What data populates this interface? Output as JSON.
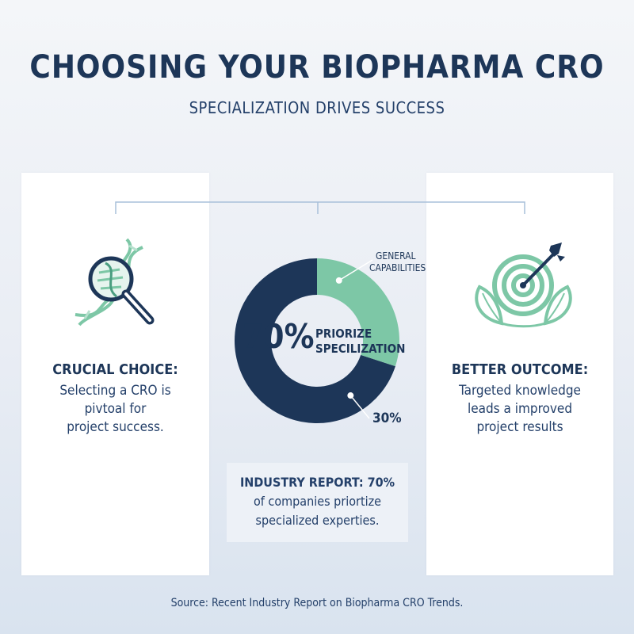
{
  "header": {
    "title": "CHOOSING YOUR BIOPHARMA CRO",
    "subtitle": "SPECIALIZATION DRIVES SUCCESS"
  },
  "left_card": {
    "icon": "dna-magnifier-icon",
    "heading": "CRUCIAL CHOICE:",
    "lines": [
      "Selecting a CRO is",
      "pivtoal for",
      "project success."
    ]
  },
  "right_card": {
    "icon": "target-arrow-icon",
    "heading": "BETTER OUTCOME:",
    "lines": [
      "Targeted knowledge",
      "leads a improved",
      "project results"
    ]
  },
  "chart_data": {
    "type": "pie",
    "variant": "donut",
    "slices": [
      {
        "label": "PRIORIZE SPECILIZATION",
        "value": 70,
        "color": "#1d3658"
      },
      {
        "label": "GENERAL CAPABILITIES",
        "value": 30,
        "color": "#7dc7a6"
      }
    ],
    "center_value": "70%",
    "center_label_lines": [
      "PRIORIZE",
      "SPECILIZATION"
    ],
    "callout_top_lines": [
      "GENERAL",
      "CAPABILITIES"
    ],
    "callout_bottom": "30%"
  },
  "report": {
    "lines": [
      "INDUSTRY REPORT: 70%",
      "of companies priortize",
      "specialized experties."
    ]
  },
  "footer": {
    "source": "Source: Recent Industry Report on Biopharma CRO Trends."
  },
  "colors": {
    "navy": "#1d3658",
    "teal": "#7dc7a6",
    "teal_dark": "#4a9d80"
  }
}
